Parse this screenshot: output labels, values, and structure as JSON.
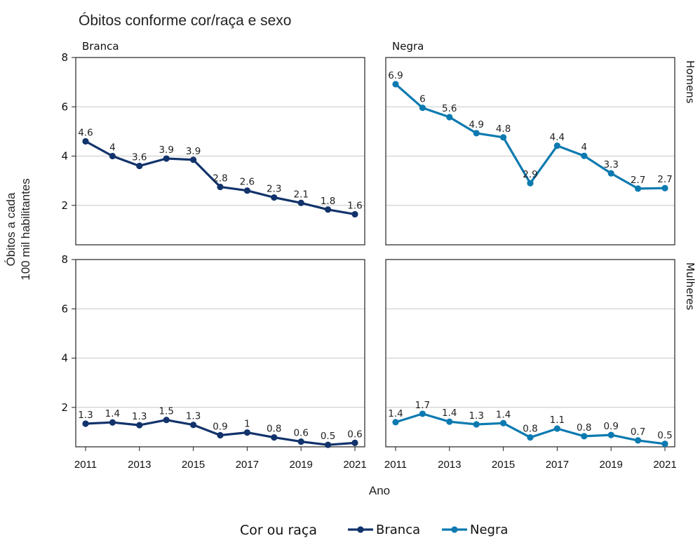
{
  "chart_data": {
    "type": "line",
    "subtitle": "Óbitos conforme cor/raça e sexo",
    "xlabel": "Ano",
    "ylabel_lines": [
      "Óbitos a cada",
      "100 mil habilitantes"
    ],
    "x": [
      2011,
      2012,
      2013,
      2014,
      2015,
      2016,
      2017,
      2018,
      2019,
      2020,
      2021
    ],
    "x_ticks": [
      2011,
      2013,
      2015,
      2017,
      2019,
      2021
    ],
    "x_tick_labels": [
      "2011",
      "2013",
      "2015",
      "2017",
      "2019",
      "2021"
    ],
    "ylim": [
      0.4,
      8
    ],
    "y_ticks": [
      2,
      4,
      6,
      8
    ],
    "y_tick_labels": [
      "2",
      "4",
      "6",
      "8"
    ],
    "grid": "horizontal",
    "columns": [
      "Branca",
      "Negra"
    ],
    "rows": [
      "Homens",
      "Mulheres"
    ],
    "colors": {
      "Branca": "#12336b",
      "Negra": "#0c7ab0"
    },
    "panels": [
      {
        "row": "Homens",
        "column": "Branca",
        "series": "Branca",
        "values": [
          4.6,
          4.0,
          3.6,
          3.9,
          3.85,
          2.75,
          2.6,
          2.32,
          2.1,
          1.83,
          1.64
        ],
        "labels": [
          "4.6",
          "4",
          "3.6",
          "3.9",
          "3.9",
          "2.8",
          "2.6",
          "2.3",
          "2.1",
          "1.8",
          "1.6"
        ]
      },
      {
        "row": "Homens",
        "column": "Negra",
        "series": "Negra",
        "values": [
          6.92,
          5.96,
          5.58,
          4.93,
          4.76,
          2.9,
          4.42,
          4.01,
          3.3,
          2.68,
          2.7
        ],
        "labels": [
          "6.9",
          "6",
          "5.6",
          "4.9",
          "4.8",
          "2.9",
          "4.4",
          "4",
          "3.3",
          "2.7",
          "2.7"
        ]
      },
      {
        "row": "Mulheres",
        "column": "Branca",
        "series": "Branca",
        "values": [
          1.34,
          1.39,
          1.28,
          1.49,
          1.29,
          0.87,
          0.98,
          0.78,
          0.61,
          0.48,
          0.56
        ],
        "labels": [
          "1.3",
          "1.4",
          "1.3",
          "1.5",
          "1.3",
          "0.9",
          "1",
          "0.8",
          "0.6",
          "0.5",
          "0.6"
        ]
      },
      {
        "row": "Mulheres",
        "column": "Negra",
        "series": "Negra",
        "values": [
          1.4,
          1.74,
          1.42,
          1.31,
          1.36,
          0.78,
          1.14,
          0.83,
          0.88,
          0.66,
          0.52
        ],
        "labels": [
          "1.4",
          "1.7",
          "1.4",
          "1.3",
          "1.4",
          "0.8",
          "1.1",
          "0.8",
          "0.9",
          "0.7",
          "0.5"
        ]
      }
    ],
    "legend": {
      "title": "Cor ou raça",
      "items": [
        "Branca",
        "Negra"
      ],
      "position": "bottom"
    }
  }
}
